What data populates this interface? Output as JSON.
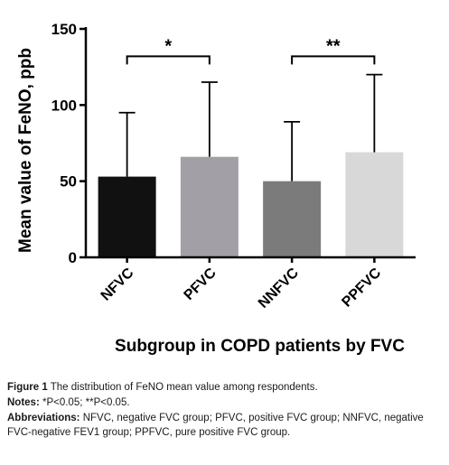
{
  "chart_data": {
    "type": "bar",
    "categories": [
      "NFVC",
      "PFVC",
      "NNFVC",
      "PPFVC"
    ],
    "values": [
      53,
      66,
      50,
      69
    ],
    "error_upper": [
      95,
      115,
      89,
      120
    ],
    "bar_colors": [
      "#111111",
      "#a29fa6",
      "#7b7b7b",
      "#d8d8d8"
    ],
    "ylabel": "Mean value of FeNO, ppb",
    "xlabel": "Subgroup in COPD patients by FVC",
    "ylim": [
      0,
      150
    ],
    "yticks": [
      0,
      50,
      100,
      150
    ],
    "grid": false,
    "significance": [
      {
        "from": 0,
        "to": 1,
        "label": "*"
      },
      {
        "from": 2,
        "to": 3,
        "label": "**"
      }
    ]
  },
  "caption": {
    "figure_label": "Figure 1",
    "figure_text": "The distribution of FeNO mean value among respondents.",
    "notes_label": "Notes:",
    "notes_text": "*P<0.05; **P<0.05.",
    "abbrev_label": "Abbreviations:",
    "abbrev_text": "NFVC, negative FVC group; PFVC, positive FVC group; NNFVC, negative FVC-negative FEV1 group; PPFVC, pure positive FVC group."
  }
}
